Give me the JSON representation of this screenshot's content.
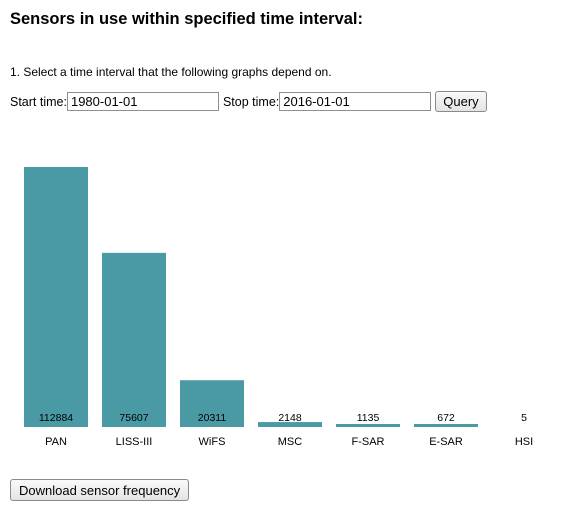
{
  "page": {
    "title": "Sensors in use within specified time interval:",
    "instruction": "1. Select a time interval that the following graphs depend on."
  },
  "form": {
    "start_label": "Start time:",
    "start_value": "1980-01-01",
    "stop_label": "Stop time:",
    "stop_value": "2016-01-01",
    "query_label": "Query"
  },
  "chart_data": {
    "type": "bar",
    "categories": [
      "PAN",
      "LISS-III",
      "WiFS",
      "MSC",
      "F-SAR",
      "E-SAR",
      "HSI"
    ],
    "values": [
      112884,
      75607,
      20311,
      2148,
      1135,
      672,
      5
    ],
    "title": "",
    "xlabel": "",
    "ylabel": "",
    "color": "#4a9aa6",
    "data_labels": true,
    "grid": false
  },
  "actions": {
    "download_label": "Download sensor frequency"
  }
}
